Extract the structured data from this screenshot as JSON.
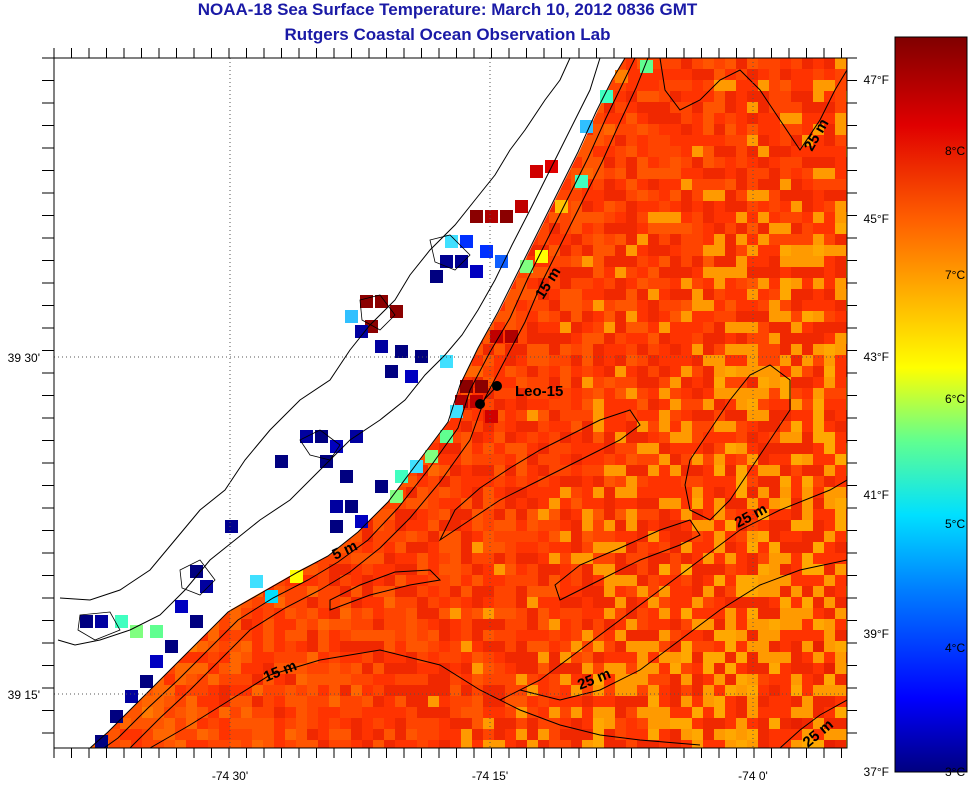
{
  "title": "NOAA-18 Sea Surface Temperature:  March 10, 2012 0836 GMT",
  "subtitle": "Rutgers Coastal Ocean Observation Lab",
  "axes": {
    "x_ticks": [
      "-74 30'",
      "-74 15'",
      "-74 0'"
    ],
    "y_ticks": [
      "39 30'",
      "39 15'"
    ]
  },
  "colorbar": {
    "fahrenheit_ticks": [
      "47°F",
      "45°F",
      "43°F",
      "41°F",
      "39°F",
      "37°F"
    ],
    "celsius_ticks": [
      "8°C",
      "7°C",
      "6°C",
      "5°C",
      "4°C",
      "3°C"
    ],
    "colors": [
      "#000080",
      "#0000ff",
      "#0080ff",
      "#00e0ff",
      "#40ffc0",
      "#a0ff60",
      "#ffff00",
      "#ffc000",
      "#ff8000",
      "#ff3000",
      "#d00000",
      "#800000"
    ]
  },
  "contour_labels": [
    "25 m",
    "15 m",
    "5 m",
    "15 m",
    "25 m",
    "25 m",
    "25 m"
  ],
  "station": {
    "name": "Leo-15"
  },
  "colors": {
    "title": "#1a1aa6",
    "land": "#ffffff",
    "coastline": "#000000"
  }
}
